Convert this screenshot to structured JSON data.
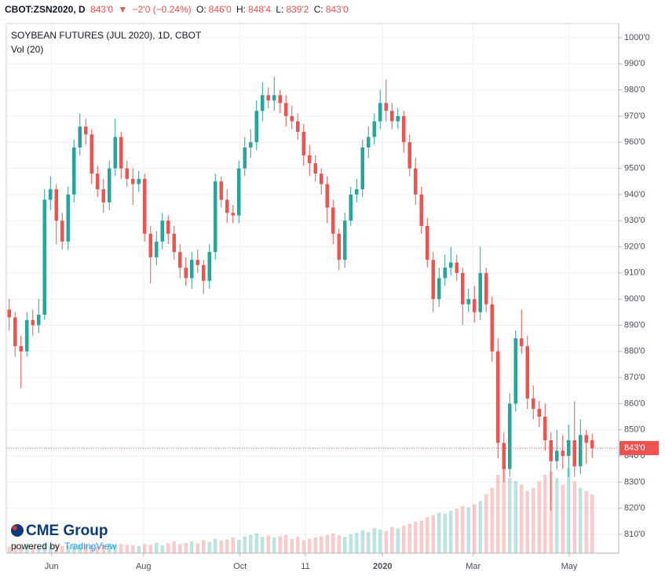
{
  "header": {
    "symbol": "CBOT:ZSN2020, D",
    "last": "843'0",
    "arrow": "▼",
    "change": "−2'0 (−0.24%)",
    "o_label": "O:",
    "o": "846'0",
    "h_label": "H:",
    "h": "848'4",
    "l_label": "L:",
    "l": "839'2",
    "c_label": "C:",
    "c": "843'0"
  },
  "logo": {
    "brand": "CME Group",
    "powered": "powered by",
    "provider": "TradingView"
  },
  "chart_data": {
    "type": "candlestick",
    "title": "SOYBEAN FUTURES (JUL 2020), 1D, CBOT",
    "subtitle": "Vol (20)",
    "up_color": "#26a69a",
    "down_color": "#ef5350",
    "grid": true,
    "last_price": 843,
    "last_label": "843'0",
    "ylim": [
      802.8,
      1005.4
    ],
    "yticks": [
      {
        "value": 810,
        "label": "810'0"
      },
      {
        "value": 820,
        "label": "820'0"
      },
      {
        "value": 830,
        "label": "830'0"
      },
      {
        "value": 840,
        "label": "840'0"
      },
      {
        "value": 850,
        "label": "850'0"
      },
      {
        "value": 860,
        "label": "860'0"
      },
      {
        "value": 870,
        "label": "870'0"
      },
      {
        "value": 880,
        "label": "880'0"
      },
      {
        "value": 890,
        "label": "890'0"
      },
      {
        "value": 900,
        "label": "900'0"
      },
      {
        "value": 910,
        "label": "910'0"
      },
      {
        "value": 920,
        "label": "920'0"
      },
      {
        "value": 930,
        "label": "930'0"
      },
      {
        "value": 940,
        "label": "940'0"
      },
      {
        "value": 950,
        "label": "950'0"
      },
      {
        "value": 960,
        "label": "960'0"
      },
      {
        "value": 970,
        "label": "970'0"
      },
      {
        "value": 980,
        "label": "980'0"
      },
      {
        "value": 990,
        "label": "990'0"
      },
      {
        "value": 1000,
        "label": "1000'0"
      }
    ],
    "xlim": [
      -0.5,
      103.5
    ],
    "xticks": [
      {
        "value": 7.2,
        "label": "Jun"
      },
      {
        "value": 22.8,
        "label": "Aug"
      },
      {
        "value": 39.2,
        "label": "Oct"
      },
      {
        "value": 50.3,
        "label": "11"
      },
      {
        "value": 63.4,
        "label": "2020"
      },
      {
        "value": 78.8,
        "label": "Mar"
      },
      {
        "value": 95.1,
        "label": "May"
      }
    ],
    "open": [
      896,
      893,
      882,
      880,
      892,
      890,
      894,
      938,
      942,
      930,
      922,
      940,
      958,
      966,
      963,
      948,
      942,
      937,
      950,
      962,
      950,
      946,
      944,
      946,
      925,
      916,
      922,
      930,
      925,
      918,
      912,
      908,
      915,
      913,
      907,
      918,
      945,
      938,
      933,
      932,
      950,
      958,
      960,
      972,
      978,
      976,
      978,
      975,
      970,
      968,
      964,
      955,
      952,
      948,
      944,
      935,
      925,
      915,
      930,
      940,
      942,
      958,
      962,
      968,
      975,
      972,
      968,
      970,
      960,
      950,
      940,
      928,
      915,
      900,
      908,
      912,
      914,
      910,
      898,
      900,
      895,
      910,
      898,
      880,
      845,
      835,
      860,
      885,
      882,
      862,
      858,
      855,
      846,
      838,
      842,
      840,
      846,
      836,
      848,
      846
    ],
    "high": [
      900,
      895,
      886,
      895,
      896,
      900,
      942,
      947,
      944,
      933,
      943,
      961,
      971,
      969,
      965,
      951,
      946,
      953,
      969,
      964,
      953,
      950,
      949,
      948,
      928,
      926,
      933,
      932,
      928,
      921,
      916,
      918,
      919,
      915,
      921,
      948,
      947,
      942,
      936,
      953,
      962,
      965,
      976,
      983,
      981,
      985,
      980,
      978,
      974,
      971,
      967,
      959,
      955,
      950,
      947,
      938,
      927,
      933,
      943,
      946,
      961,
      966,
      971,
      980,
      984,
      975,
      973,
      972,
      963,
      954,
      943,
      931,
      918,
      912,
      917,
      920,
      917,
      912,
      904,
      905,
      920,
      912,
      901,
      885,
      849,
      864,
      888,
      896,
      886,
      867,
      861,
      860,
      849,
      850,
      848,
      852,
      861,
      854,
      850,
      848.5
    ],
    "low": [
      888,
      878,
      866,
      878,
      886,
      887,
      892,
      934,
      921,
      919,
      919,
      937,
      955,
      959,
      944,
      939,
      933,
      934,
      947,
      946,
      943,
      936,
      941,
      922,
      906,
      913,
      919,
      921,
      915,
      908,
      905,
      904,
      910,
      902,
      904,
      915,
      935,
      929,
      929,
      929,
      947,
      954,
      957,
      968,
      973,
      972,
      971,
      966,
      965,
      961,
      951,
      947,
      945,
      940,
      929,
      921,
      911,
      912,
      928,
      937,
      939,
      954,
      959,
      965,
      968,
      965,
      965,
      956,
      947,
      936,
      925,
      912,
      895,
      897,
      905,
      909,
      907,
      890,
      895,
      891,
      892,
      895,
      876,
      839,
      830,
      832,
      857,
      879,
      858,
      854,
      851,
      842,
      819,
      835,
      835,
      832,
      832,
      833,
      837,
      839.25
    ],
    "close": [
      893,
      882,
      880,
      892,
      890,
      894,
      938,
      942,
      930,
      922,
      940,
      958,
      966,
      963,
      948,
      942,
      937,
      950,
      962,
      950,
      946,
      944,
      946,
      925,
      916,
      922,
      930,
      925,
      918,
      912,
      908,
      915,
      913,
      907,
      918,
      945,
      938,
      933,
      932,
      950,
      958,
      960,
      972,
      978,
      976,
      978,
      975,
      970,
      968,
      964,
      955,
      952,
      948,
      944,
      935,
      925,
      915,
      930,
      940,
      942,
      958,
      962,
      968,
      975,
      972,
      968,
      970,
      960,
      950,
      940,
      928,
      915,
      900,
      908,
      912,
      914,
      910,
      898,
      900,
      895,
      910,
      898,
      880,
      845,
      835,
      860,
      885,
      882,
      862,
      858,
      855,
      846,
      838,
      842,
      840,
      846,
      836,
      848,
      845,
      843
    ],
    "vlim": [
      0,
      300
    ],
    "volume": [
      10,
      12,
      9,
      14,
      11,
      10,
      16,
      13,
      12,
      11,
      12,
      15,
      13,
      14,
      12,
      11,
      13,
      15,
      12,
      14,
      13,
      12,
      11,
      14,
      13,
      16,
      12,
      15,
      18,
      14,
      16,
      18,
      15,
      20,
      17,
      22,
      19,
      21,
      24,
      20,
      26,
      28,
      30,
      25,
      27,
      24,
      26,
      28,
      22,
      25,
      20,
      22,
      24,
      26,
      28,
      30,
      27,
      25,
      29,
      31,
      35,
      32,
      38,
      36,
      34,
      40,
      38,
      42,
      45,
      48,
      50,
      55,
      58,
      62,
      60,
      65,
      68,
      72,
      70,
      75,
      80,
      90,
      100,
      120,
      130,
      115,
      110,
      105,
      95,
      100,
      110,
      120,
      125,
      115,
      105,
      130,
      110,
      100,
      95,
      90
    ]
  }
}
